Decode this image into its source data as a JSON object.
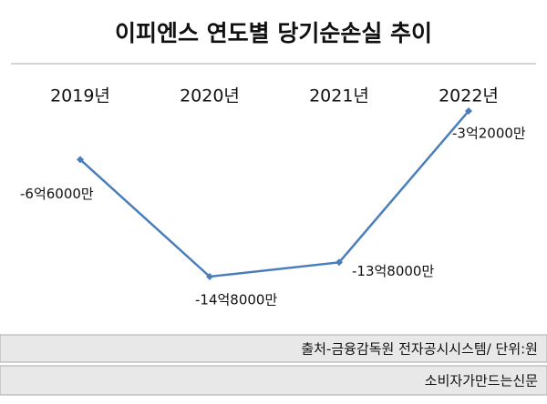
{
  "chart_data": {
    "type": "line",
    "title": "이피엔스 연도별 당기순손실 추이",
    "categories": [
      "2019년",
      "2020년",
      "2021년",
      "2022년"
    ],
    "series": [
      {
        "name": "당기순손실",
        "color": "#4a7ebb",
        "values": [
          -660000000,
          -1480000000,
          -1380000000,
          -320000000
        ],
        "value_labels": [
          "-6억6000만",
          "-14억8000만",
          "-13억8000만",
          "-3억2000만"
        ]
      }
    ],
    "source": "출처-금융감독원 전자공시시스템/ 단위:원",
    "publisher": "소비자가만드는신문"
  }
}
